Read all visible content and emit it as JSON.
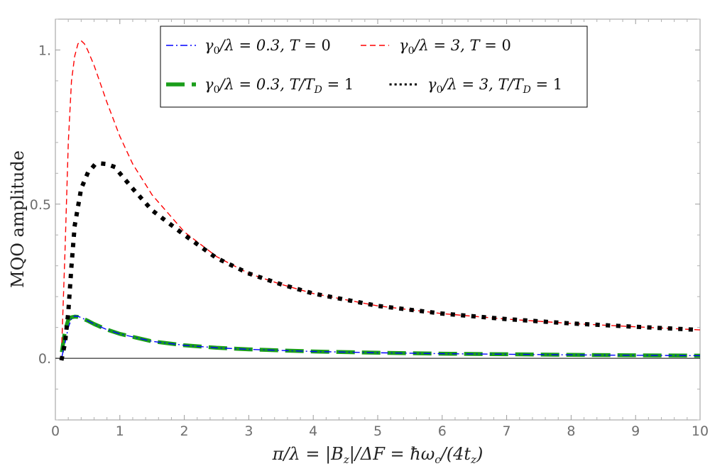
{
  "chart_data": {
    "type": "line",
    "title": "",
    "xlabel": "π/λ = |B_z|/ΔF = ħω_c/(4t_z)",
    "ylabel": "MQO amplitude",
    "xlim": [
      0,
      10
    ],
    "ylim": [
      -0.2,
      1.1
    ],
    "x_ticks": [
      0,
      1,
      2,
      3,
      4,
      5,
      6,
      7,
      8,
      9,
      10
    ],
    "x_tick_labels": [
      "0",
      "1",
      "2",
      "3",
      "4",
      "5",
      "6",
      "7",
      "8",
      "9",
      "10"
    ],
    "y_ticks": [
      0,
      0.5,
      1
    ],
    "y_tick_labels": [
      "0.",
      "0.5",
      "1."
    ],
    "grid": false,
    "legend_position": "top-center",
    "series": [
      {
        "name": "γ0/λ = 0.3, T = 0",
        "color": "#0000ff",
        "style": "dash-dot-thin",
        "x": [
          0.1,
          0.15,
          0.2,
          0.25,
          0.3,
          0.35,
          0.4,
          0.5,
          0.6,
          0.8,
          1,
          1.5,
          2,
          2.5,
          3,
          4,
          5,
          6,
          7,
          8,
          9,
          10
        ],
        "y": [
          0.004,
          0.05,
          0.1,
          0.128,
          0.137,
          0.136,
          0.132,
          0.122,
          0.111,
          0.093,
          0.079,
          0.055,
          0.042,
          0.034,
          0.029,
          0.022,
          0.018,
          0.015,
          0.013,
          0.011,
          0.0095,
          0.0085
        ]
      },
      {
        "name": "γ0/λ = 3, T = 0",
        "color": "#ff0000",
        "style": "dashed-thin",
        "x": [
          0.1,
          0.15,
          0.2,
          0.25,
          0.3,
          0.35,
          0.4,
          0.45,
          0.5,
          0.6,
          0.7,
          0.8,
          1,
          1.2,
          1.5,
          2,
          2.5,
          3,
          3.5,
          4,
          5,
          6,
          7,
          8,
          9,
          10
        ],
        "y": [
          0.05,
          0.35,
          0.7,
          0.9,
          0.98,
          1.02,
          1.03,
          1.02,
          1.0,
          0.95,
          0.89,
          0.83,
          0.72,
          0.63,
          0.53,
          0.41,
          0.33,
          0.275,
          0.24,
          0.21,
          0.17,
          0.145,
          0.127,
          0.113,
          0.102,
          0.092
        ]
      },
      {
        "name": "γ0/λ = 0.3, T/T_D = 1",
        "color": "#1a9e1a",
        "style": "dashed-thick",
        "x": [
          0.1,
          0.15,
          0.2,
          0.25,
          0.3,
          0.35,
          0.4,
          0.5,
          0.6,
          0.8,
          1,
          1.5,
          2,
          2.5,
          3,
          4,
          5,
          6,
          7,
          8,
          9,
          10
        ],
        "y": [
          0.02,
          0.09,
          0.125,
          0.133,
          0.135,
          0.134,
          0.131,
          0.122,
          0.111,
          0.093,
          0.079,
          0.055,
          0.042,
          0.034,
          0.029,
          0.022,
          0.018,
          0.015,
          0.013,
          0.011,
          0.0095,
          0.0085
        ]
      },
      {
        "name": "γ0/λ = 3, T/T_D = 1",
        "color": "#000000",
        "style": "dotted-thick",
        "x": [
          0.1,
          0.15,
          0.2,
          0.25,
          0.3,
          0.4,
          0.5,
          0.6,
          0.7,
          0.8,
          0.9,
          1,
          1.2,
          1.5,
          2,
          2.5,
          3,
          3.5,
          4,
          5,
          6,
          7,
          8,
          9,
          10
        ],
        "y": [
          0.0,
          0.05,
          0.15,
          0.3,
          0.43,
          0.55,
          0.6,
          0.625,
          0.632,
          0.63,
          0.622,
          0.6,
          0.55,
          0.48,
          0.4,
          0.325,
          0.275,
          0.24,
          0.21,
          0.17,
          0.145,
          0.127,
          0.113,
          0.102,
          0.092
        ]
      }
    ],
    "legend": [
      {
        "sym": "γ",
        "sub": "0",
        "mid": "/λ = 0.3, ",
        "var": "T",
        "tail": " = 0"
      },
      {
        "sym": "γ",
        "sub": "0",
        "mid": "/λ = 3, ",
        "var": "T",
        "tail": " = 0"
      },
      {
        "sym": "γ",
        "sub": "0",
        "mid": "/λ = 0.3, ",
        "var": "T/T",
        "sub2": "D",
        "tail": " = 1"
      },
      {
        "sym": "γ",
        "sub": "0",
        "mid": "/λ = 3, ",
        "var": "T/T",
        "sub2": "D",
        "tail": " = 1"
      }
    ]
  }
}
